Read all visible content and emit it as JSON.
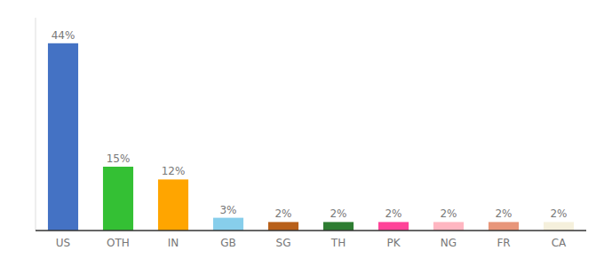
{
  "chart_data": {
    "type": "bar",
    "categories": [
      "US",
      "OTH",
      "IN",
      "GB",
      "SG",
      "TH",
      "PK",
      "NG",
      "FR",
      "CA"
    ],
    "values": [
      44,
      15,
      12,
      3,
      2,
      2,
      2,
      2,
      2,
      2
    ],
    "value_labels": [
      "44%",
      "15%",
      "12%",
      "3%",
      "2%",
      "2%",
      "2%",
      "2%",
      "2%",
      "2%"
    ],
    "colors": [
      "#4472C4",
      "#34C034",
      "#FFA500",
      "#87CEEB",
      "#B8601A",
      "#2E7D32",
      "#FF4499",
      "#FFB6C1",
      "#E8967A",
      "#F5F0DC"
    ],
    "ylim": [
      0,
      50
    ],
    "grid": false,
    "data_labels": true,
    "tick_labels": "x"
  }
}
